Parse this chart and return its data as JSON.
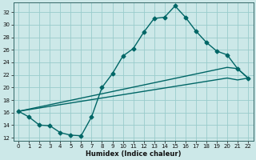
{
  "title": "",
  "xlabel": "Humidex (Indice chaleur)",
  "xlim": [
    -0.5,
    22.5
  ],
  "ylim": [
    11.5,
    33.5
  ],
  "yticks": [
    12,
    14,
    16,
    18,
    20,
    22,
    24,
    26,
    28,
    30,
    32
  ],
  "xticks": [
    0,
    1,
    2,
    3,
    4,
    5,
    6,
    7,
    8,
    9,
    10,
    11,
    12,
    13,
    14,
    15,
    16,
    17,
    18,
    19,
    20,
    21,
    22
  ],
  "bg_color": "#cce8e8",
  "grid_color": "#99cccc",
  "line_color": "#006666",
  "line1_x": [
    0,
    1,
    2,
    3,
    4,
    5,
    6,
    7,
    8,
    9,
    10,
    11,
    12,
    13,
    14,
    15,
    16,
    17,
    18,
    19,
    20,
    21,
    22
  ],
  "line1_y": [
    16.2,
    15.3,
    14.0,
    13.9,
    12.8,
    12.4,
    12.3,
    15.3,
    20.0,
    22.2,
    25.0,
    26.2,
    28.8,
    31.0,
    31.2,
    33.0,
    31.2,
    29.0,
    27.2,
    25.8,
    25.2,
    23.0,
    21.5
  ],
  "line2_x": [
    0,
    20,
    21,
    22
  ],
  "line2_y": [
    16.2,
    23.2,
    23.0,
    21.5
  ],
  "line3_x": [
    0,
    20,
    21,
    22
  ],
  "line3_y": [
    16.2,
    21.5,
    21.2,
    21.5
  ],
  "marker_style": "D",
  "marker_size": 2.5,
  "line_width": 1.0,
  "tick_fontsize": 5.0,
  "xlabel_fontsize": 6.0
}
